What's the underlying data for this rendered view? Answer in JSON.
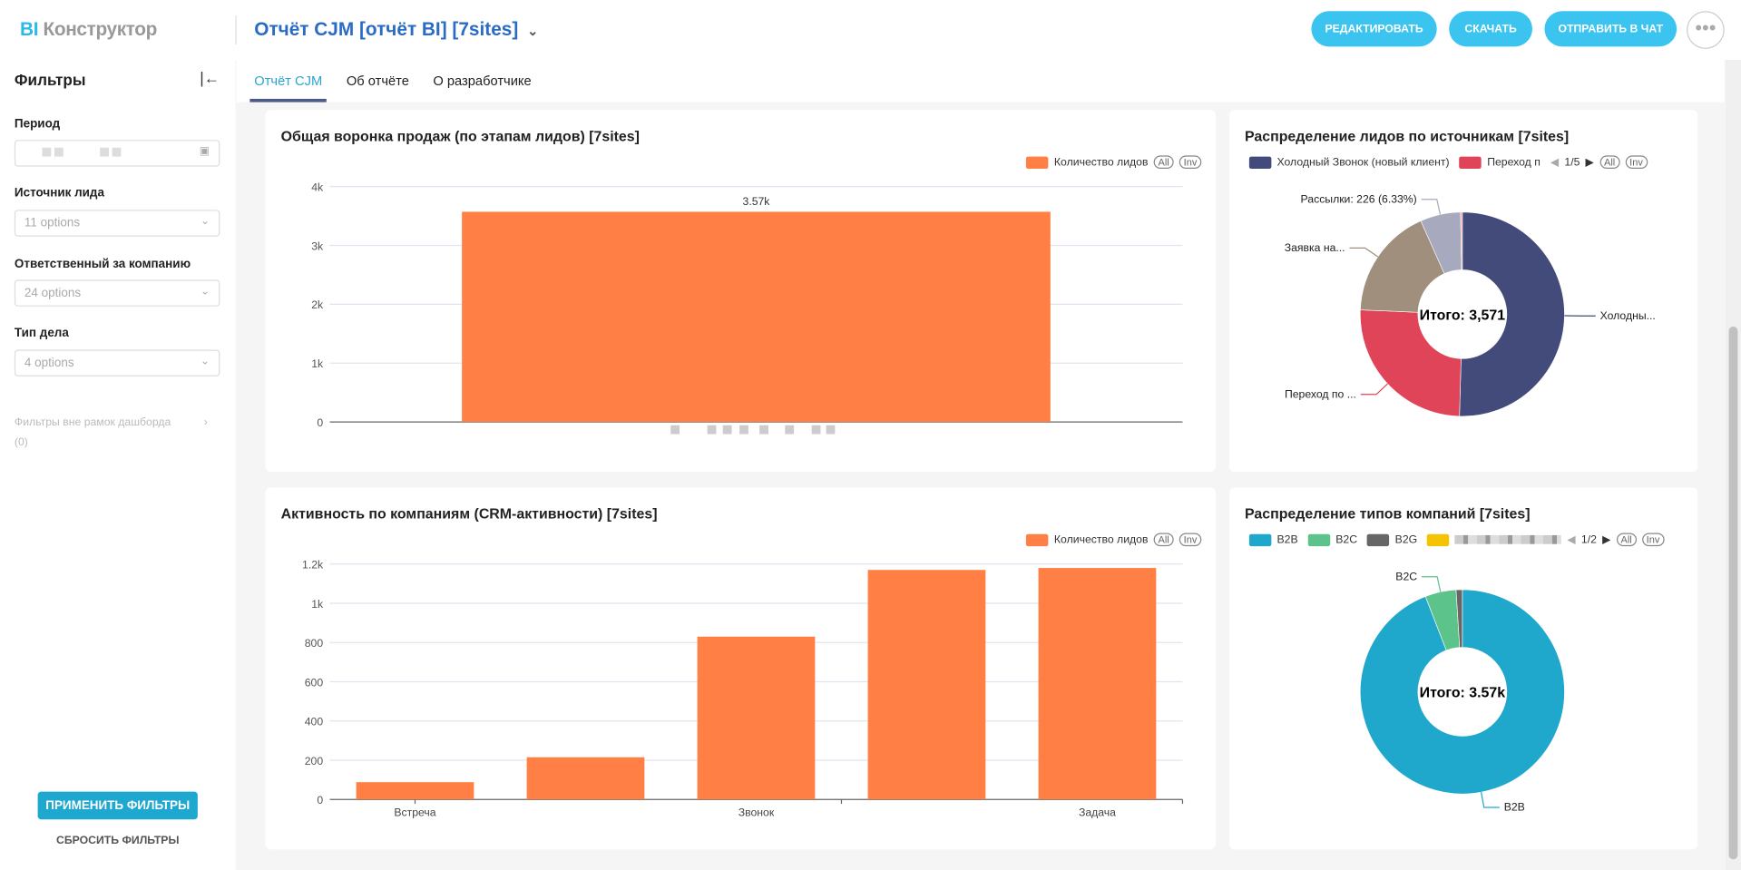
{
  "header": {
    "logo_bi": "BI",
    "logo_rest": "Конструктор",
    "title": "Отчёт CJM [отчёт BI] [7sites]",
    "edit": "РЕДАКТИРОВАТЬ",
    "download": "СКАЧАТЬ",
    "send": "ОТПРАВИТЬ В ЧАТ",
    "more": "•••"
  },
  "sidebar": {
    "title": "Фильтры",
    "filters": [
      {
        "label": "Период",
        "value": ""
      },
      {
        "label": "Источник лида",
        "value": "11 options"
      },
      {
        "label": "Ответственный за компанию",
        "value": "24 options"
      },
      {
        "label": "Тип дела",
        "value": "4 options"
      }
    ],
    "outside": "Фильтры вне рамок дашборда",
    "outside_count": "(0)",
    "apply": "ПРИМЕНИТЬ ФИЛЬТРЫ",
    "reset": "СБРОСИТЬ ФИЛЬТРЫ"
  },
  "tabs": [
    "Отчёт CJM",
    "Об отчёте",
    "О разработчике"
  ],
  "legend_controls": {
    "all": "All",
    "inv": "Inv"
  },
  "chart_data": [
    {
      "type": "bar",
      "title": "Общая воронка продаж (по этапам лидов) [7sites]",
      "legend": "Количество лидов",
      "color": "#ff7f45",
      "categories": [
        ""
      ],
      "values": [
        3571
      ],
      "data_labels": [
        "3.57k"
      ],
      "yticks": [
        "0",
        "1k",
        "2k",
        "3k",
        "4k"
      ],
      "ylim": [
        0,
        4000
      ]
    },
    {
      "type": "pie",
      "title": "Распределение лидов по источникам [7sites]",
      "legend": [
        "Холодный Звонок (новый клиент)",
        "Переход п"
      ],
      "page": "1/5",
      "total": "Итого: 3,571",
      "slices": [
        {
          "label": "Холодны...",
          "value": 1786,
          "color": "#434b7a"
        },
        {
          "label": "Переход по ...",
          "value": 893,
          "color": "#e04459"
        },
        {
          "label": "Заявка на...",
          "value": 625,
          "color": "#a08f7c"
        },
        {
          "label": "Рассылки: 226 (6.33%)",
          "value": 226,
          "color": "#a7aabe"
        },
        {
          "label": "",
          "value": 10,
          "color": "#e8a0a0"
        }
      ]
    },
    {
      "type": "bar",
      "title": "Активность по компаниям (CRM-активности) [7sites]",
      "legend": "Количество лидов",
      "color": "#ff7f45",
      "categories": [
        "Встреча",
        "",
        "Звонок",
        "",
        "Задача"
      ],
      "values": [
        88,
        215,
        830,
        1170,
        1180
      ],
      "yticks": [
        "0",
        "200",
        "400",
        "600",
        "800",
        "1k",
        "1.2k"
      ],
      "ylim": [
        0,
        1200
      ]
    },
    {
      "type": "pie",
      "title": "Распределение типов компаний [7sites]",
      "legend": [
        "B2B",
        "B2C",
        "B2G"
      ],
      "page": "1/2",
      "total": "Итого: 3.57k",
      "slices": [
        {
          "label": "B2B",
          "value": 3360,
          "color": "#20a8cc"
        },
        {
          "label": "B2C",
          "value": 175,
          "color": "#5cc38a"
        },
        {
          "label": "",
          "value": 35,
          "color": "#666666"
        }
      ]
    }
  ]
}
